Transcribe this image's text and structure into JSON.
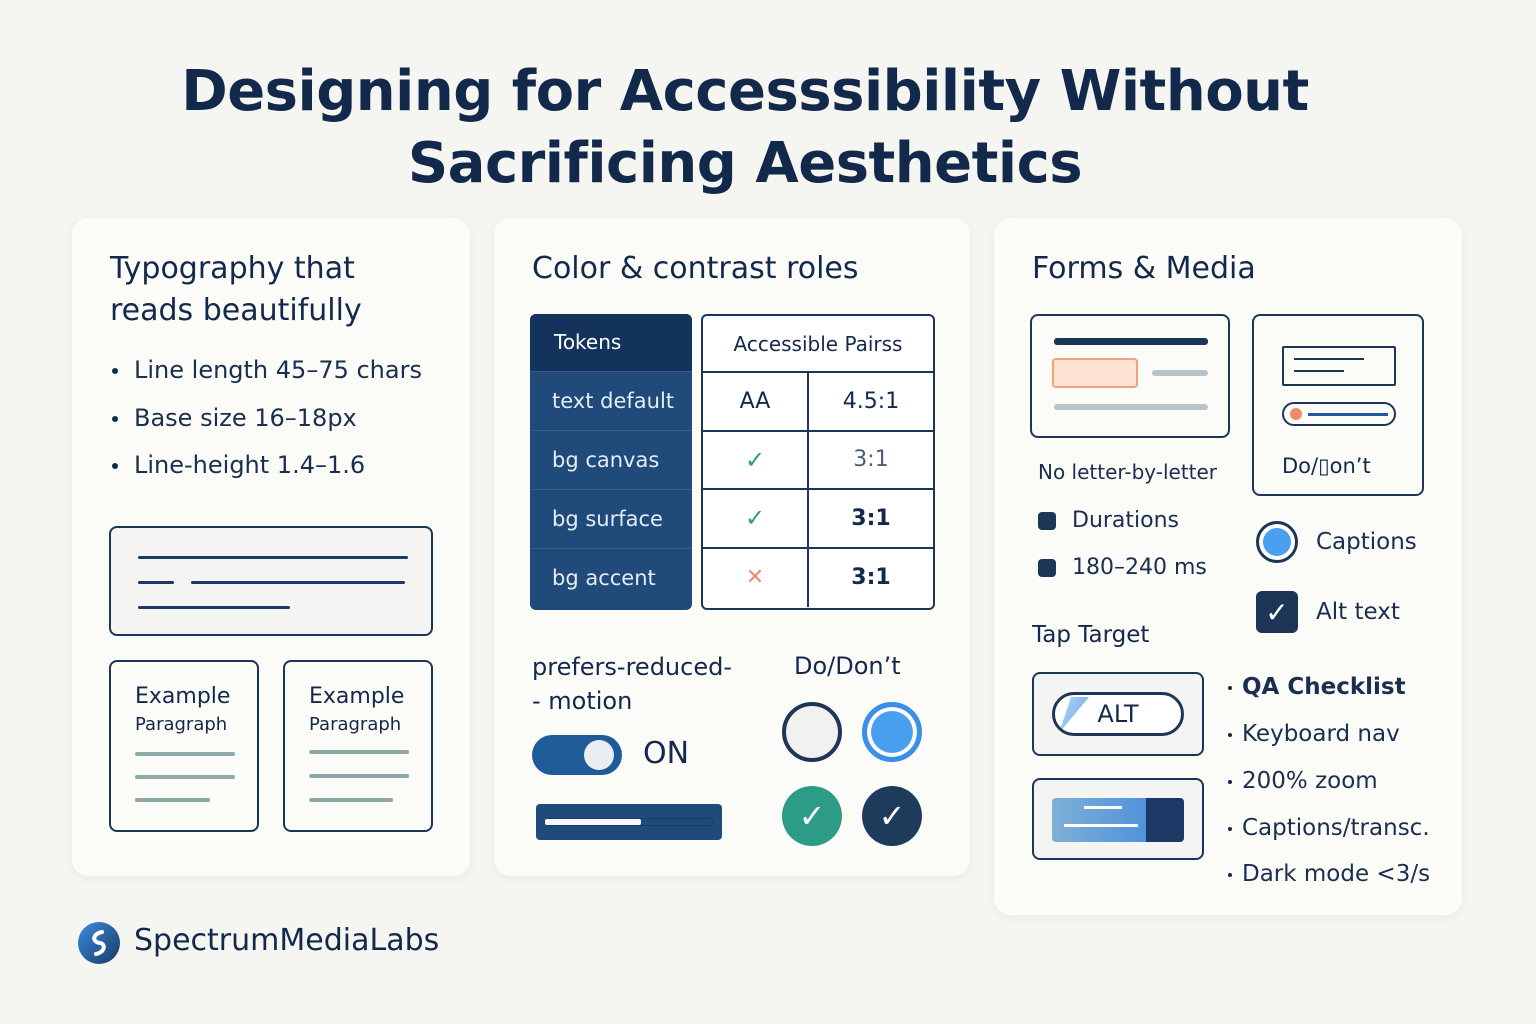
{
  "title": {
    "line1": "Designing for Accesssibility Without",
    "line2": "Sacrificing Aesthetics"
  },
  "typography": {
    "heading_line1": "Typography that",
    "heading_line2": "reads beautifully",
    "bullets": [
      "Line length 45–75 chars",
      "Base size 16–18px",
      "Line-height 1.4–1.6"
    ],
    "examples": [
      {
        "title": "Example",
        "sub": "Paragraph"
      },
      {
        "title": "Example",
        "sub": "Paragraph"
      }
    ]
  },
  "color": {
    "heading": "Color & contrast roles",
    "tokens_header": "Tokens",
    "tokens": [
      "text default",
      "bg canvas",
      "bg surface",
      "bg accent"
    ],
    "pairs_header": "Accessible Pairss",
    "pairs": [
      {
        "c1": "AA",
        "c2": "4.5:1"
      },
      {
        "c1": "✓",
        "c2": "3:1"
      },
      {
        "c1": "✓",
        "c2": "3:1"
      },
      {
        "c1": "✕",
        "c2": "3:1"
      }
    ],
    "motion_label_line1": "prefers-reduced-",
    "motion_label_line2": "- motion",
    "toggle_state": "ON",
    "do_dont_label": "Do/Don’t",
    "progress_fraction": 0.57,
    "accent": "#1f4a7a"
  },
  "forms": {
    "heading": "Forms & Media",
    "no_letter": "No letter-by-letter",
    "do_dont": "Do/▯on’t",
    "durations": [
      "Durations",
      "180–240 ms"
    ],
    "captions": "Captions",
    "alt_text": "Alt text",
    "tap_target": "Tap Target",
    "alt_button": "ALT",
    "qa": [
      "QA Checklist",
      "Keyboard nav",
      "200% zoom",
      "Captions/transc.",
      "Dark mode <3/s"
    ]
  },
  "brand": {
    "name": "SpectrumMediaLabs"
  }
}
